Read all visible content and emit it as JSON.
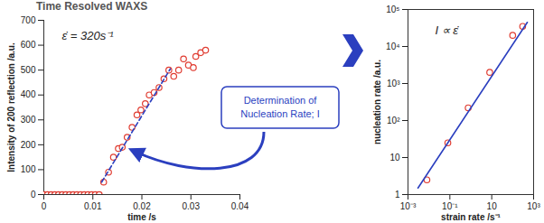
{
  "chart_data": [
    {
      "type": "scatter",
      "title": "Time Resolved WAXS",
      "annotation": "ε̇ = 320s⁻¹",
      "x_label": "time /s",
      "y_label": "Intensity of 200 reflection /a.u.",
      "xlim": [
        0,
        0.04
      ],
      "xticks": [
        0,
        0.01,
        0.02,
        0.03,
        0.04
      ],
      "ylim": [
        0,
        700
      ],
      "yticks": [
        0,
        100,
        200,
        300,
        400,
        500,
        600,
        700
      ],
      "series": [
        {
          "type": "scatter",
          "color": "#e03c31",
          "marker": "open_circle",
          "x": [
            0,
            0.00075,
            0.0015,
            0.00225,
            0.003,
            0.00375,
            0.0045,
            0.00525,
            0.006,
            0.00675,
            0.0075,
            0.00825,
            0.009,
            0.00975,
            0.0105,
            0.0113,
            0.0122,
            0.0132,
            0.0142,
            0.0152,
            0.016,
            0.017,
            0.018,
            0.019,
            0.0198,
            0.0207,
            0.0215,
            0.0225,
            0.0235,
            0.0245,
            0.0255,
            0.0265,
            0.0275,
            0.0285,
            0.0295,
            0.0305,
            0.031,
            0.032,
            0.033
          ],
          "values": [
            0,
            0,
            0,
            0,
            0,
            0,
            0,
            0,
            0,
            0,
            0,
            0,
            0,
            0,
            0,
            0,
            50,
            90,
            150,
            185,
            190,
            230,
            270,
            320,
            340,
            365,
            400,
            410,
            430,
            465,
            500,
            475,
            500,
            545,
            520,
            510,
            555,
            570,
            580
          ]
        },
        {
          "type": "line",
          "color": "#2b3fbf",
          "line_style": "dashed",
          "x": [
            0.0118,
            0.0258
          ],
          "values": [
            50,
            505
          ]
        }
      ]
    },
    {
      "type": "scatter",
      "log": true,
      "annotation": "I ∝ ε̇",
      "x_label": "strain rate /s⁻¹",
      "y_label": "nucleation rate /a.u.",
      "xlim": [
        0.001,
        1000
      ],
      "xticks": [
        {
          "value": 0.001,
          "label": "10⁻³"
        },
        {
          "value": 0.1,
          "label": "10⁻¹"
        },
        10,
        {
          "value": 1000,
          "label": "10³"
        }
      ],
      "ylim": [
        1,
        100000
      ],
      "yticks": [
        1,
        10,
        {
          "value": 100,
          "label": "10²"
        },
        {
          "value": 1000,
          "label": "10³"
        },
        {
          "value": 10000,
          "label": "10⁴"
        },
        {
          "value": 100000,
          "label": "10⁵"
        }
      ],
      "series": [
        {
          "type": "scatter",
          "color": "#e03c31",
          "marker": "open_circle",
          "x": [
            0.008,
            0.08,
            0.75,
            8,
            100,
            300
          ],
          "values": [
            2.5,
            25,
            220,
            2000,
            20000,
            35000
          ]
        },
        {
          "type": "line",
          "color": "#2b3fbf",
          "line_style": "solid",
          "x": [
            0.003,
            500
          ],
          "values": [
            1.5,
            45000
          ]
        }
      ]
    }
  ],
  "callout": {
    "lines": [
      "Determination of",
      "Nucleation Rate; I"
    ],
    "color": "#2b3fbf"
  }
}
